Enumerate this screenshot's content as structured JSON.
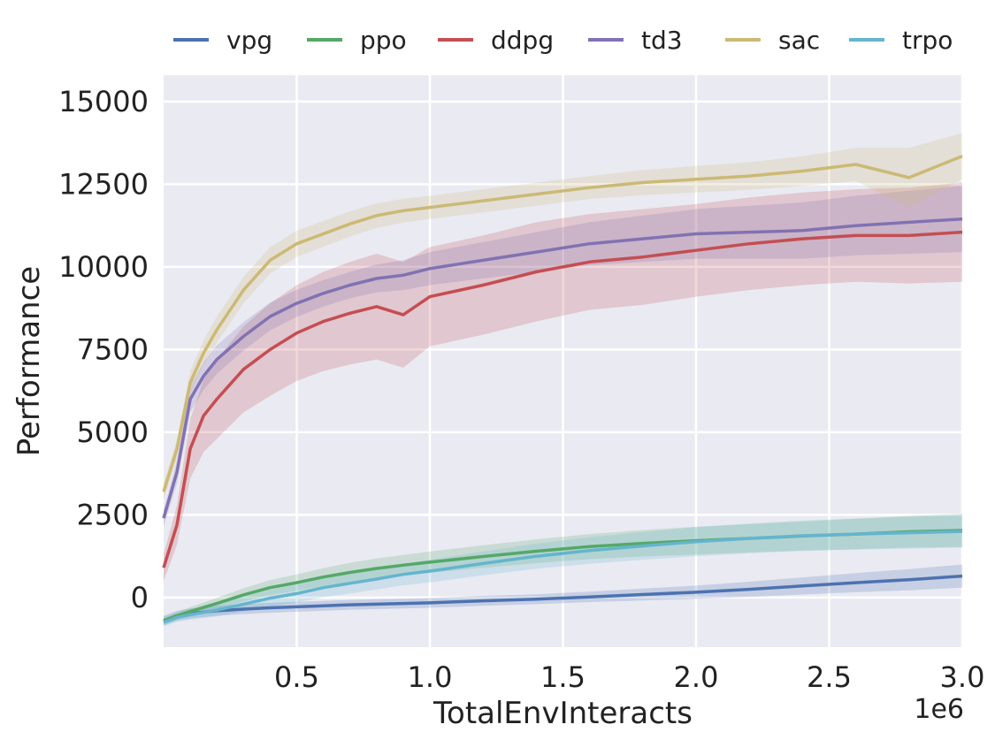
{
  "chart_data": {
    "type": "line",
    "title": "",
    "xlabel": "TotalEnvInteracts",
    "ylabel": "Performance",
    "x_offset_label": "1e6",
    "xlim": [
      0,
      3000000
    ],
    "ylim": [
      -1500,
      15800
    ],
    "xticks": [
      500000,
      1000000,
      1500000,
      2000000,
      2500000,
      3000000
    ],
    "xtick_labels": [
      "0.5",
      "1.0",
      "1.5",
      "2.0",
      "2.5",
      "3.0"
    ],
    "yticks": [
      0,
      2500,
      5000,
      7500,
      10000,
      12500,
      15000
    ],
    "ytick_labels": [
      "0",
      "2500",
      "5000",
      "7500",
      "10000",
      "12500",
      "15000"
    ],
    "grid": true,
    "legend_position": "top",
    "x": [
      0,
      50000,
      100000,
      150000,
      200000,
      300000,
      400000,
      500000,
      600000,
      700000,
      800000,
      900000,
      1000000,
      1200000,
      1400000,
      1600000,
      1800000,
      2000000,
      2200000,
      2400000,
      2600000,
      2800000,
      3000000
    ],
    "series": [
      {
        "name": "vpg",
        "color": "#4c72b0",
        "values": [
          -700,
          -550,
          -480,
          -440,
          -400,
          -350,
          -310,
          -280,
          -250,
          -220,
          -200,
          -180,
          -160,
          -100,
          -50,
          20,
          90,
          160,
          250,
          350,
          450,
          540,
          650
        ],
        "band": [
          150,
          150,
          150,
          150,
          150,
          150,
          150,
          150,
          150,
          150,
          150,
          150,
          150,
          150,
          150,
          160,
          180,
          200,
          230,
          260,
          290,
          320,
          350
        ]
      },
      {
        "name": "ppo",
        "color": "#55a868",
        "values": [
          -700,
          -550,
          -420,
          -300,
          -180,
          80,
          300,
          450,
          620,
          760,
          880,
          980,
          1070,
          1240,
          1400,
          1540,
          1640,
          1720,
          1790,
          1860,
          1920,
          1990,
          2030
        ],
        "band": [
          100,
          110,
          130,
          150,
          170,
          200,
          230,
          250,
          270,
          290,
          300,
          310,
          320,
          340,
          360,
          380,
          400,
          420,
          430,
          440,
          460,
          480,
          500
        ]
      },
      {
        "name": "ddpg",
        "color": "#c44e52",
        "values": [
          900,
          2200,
          4500,
          5500,
          6000,
          6900,
          7500,
          8000,
          8350,
          8600,
          8800,
          8550,
          9100,
          9450,
          9850,
          10150,
          10300,
          10500,
          10700,
          10850,
          10950,
          10950,
          11050
        ],
        "band": [
          400,
          600,
          900,
          1100,
          1200,
          1300,
          1400,
          1450,
          1500,
          1550,
          1600,
          1600,
          1500,
          1500,
          1500,
          1450,
          1450,
          1400,
          1400,
          1400,
          1400,
          1450,
          1500
        ]
      },
      {
        "name": "td3",
        "color": "#8172b2",
        "values": [
          2400,
          3800,
          6000,
          6700,
          7200,
          7900,
          8500,
          8900,
          9200,
          9450,
          9650,
          9750,
          9950,
          10200,
          10450,
          10700,
          10850,
          11000,
          11050,
          11100,
          11250,
          11350,
          11450
        ],
        "band": [
          250,
          350,
          400,
          420,
          430,
          430,
          420,
          410,
          400,
          400,
          420,
          450,
          500,
          550,
          600,
          650,
          700,
          750,
          800,
          850,
          900,
          950,
          1000
        ]
      },
      {
        "name": "sac",
        "color": "#ccb974",
        "values": [
          3200,
          4500,
          6500,
          7400,
          8100,
          9300,
          10200,
          10700,
          11000,
          11300,
          11550,
          11700,
          11800,
          12000,
          12200,
          12400,
          12550,
          12650,
          12750,
          12900,
          13100,
          12700,
          13350
        ],
        "band": [
          250,
          300,
          350,
          380,
          400,
          400,
          400,
          400,
          390,
          380,
          370,
          360,
          350,
          350,
          350,
          350,
          380,
          400,
          420,
          450,
          500,
          900,
          700
        ]
      },
      {
        "name": "trpo",
        "color": "#64b5cd",
        "values": [
          -750,
          -600,
          -520,
          -450,
          -380,
          -200,
          -20,
          120,
          300,
          430,
          560,
          700,
          800,
          1030,
          1250,
          1420,
          1560,
          1690,
          1790,
          1870,
          1920,
          1960,
          2000
        ],
        "band": [
          120,
          130,
          150,
          170,
          190,
          220,
          250,
          270,
          290,
          310,
          320,
          330,
          340,
          360,
          380,
          400,
          420,
          440,
          450,
          460,
          470,
          480,
          490
        ]
      }
    ]
  }
}
